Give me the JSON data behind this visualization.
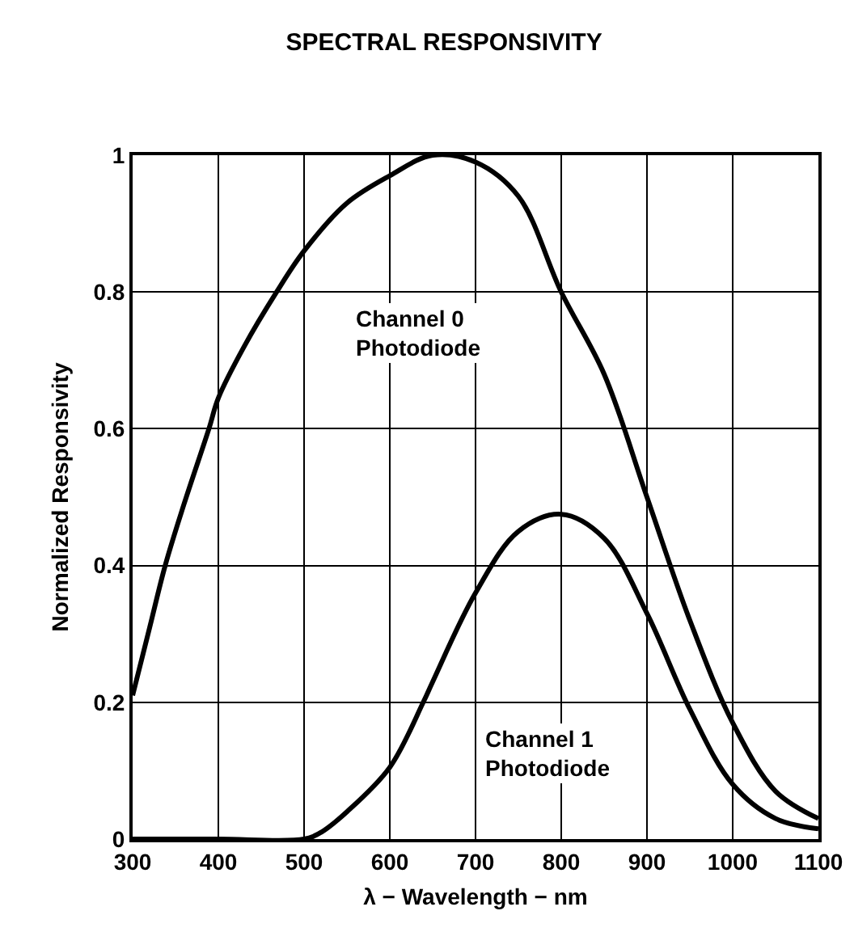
{
  "chart_data": {
    "type": "line",
    "title": "SPECTRAL RESPONSIVITY",
    "xlabel": "λ − Wavelength − nm",
    "ylabel": "Normalized Responsivity",
    "xlim": [
      300,
      1100
    ],
    "xticks": [
      300,
      400,
      500,
      600,
      700,
      800,
      900,
      1000,
      1100
    ],
    "ylim": [
      0,
      1
    ],
    "yticks": [
      0,
      0.2,
      0.4,
      0.6,
      0.8,
      1
    ],
    "grid": true,
    "marker": "none",
    "line_style": "solid",
    "series": [
      {
        "color": "#000000",
        "x": [
          300,
          320,
          338,
          360,
          389,
          400,
          430,
          468,
          500,
          550,
          600,
          650,
          700,
          750,
          800,
          850,
          900,
          950,
          1000,
          1050,
          1100
        ],
        "values": [
          0.21,
          0.31,
          0.4,
          0.49,
          0.6,
          0.645,
          0.72,
          0.8,
          0.86,
          0.93,
          0.97,
          1.0,
          0.99,
          0.94,
          0.8,
          0.68,
          0.5,
          0.32,
          0.17,
          0.07,
          0.03
        ]
      },
      {
        "color": "#000000",
        "x": [
          300,
          400,
          500,
          520,
          550,
          600,
          639,
          650,
          700,
          750,
          800,
          850,
          900,
          950,
          1000,
          1050,
          1100
        ],
        "values": [
          0.0,
          0.0,
          0.0,
          0.01,
          0.04,
          0.105,
          0.2,
          0.23,
          0.36,
          0.45,
          0.475,
          0.44,
          0.33,
          0.19,
          0.08,
          0.03,
          0.015
        ]
      }
    ],
    "annotations": [
      "Channel 0\nPhotodiode",
      "Channel 1\nPhotodiode"
    ]
  }
}
